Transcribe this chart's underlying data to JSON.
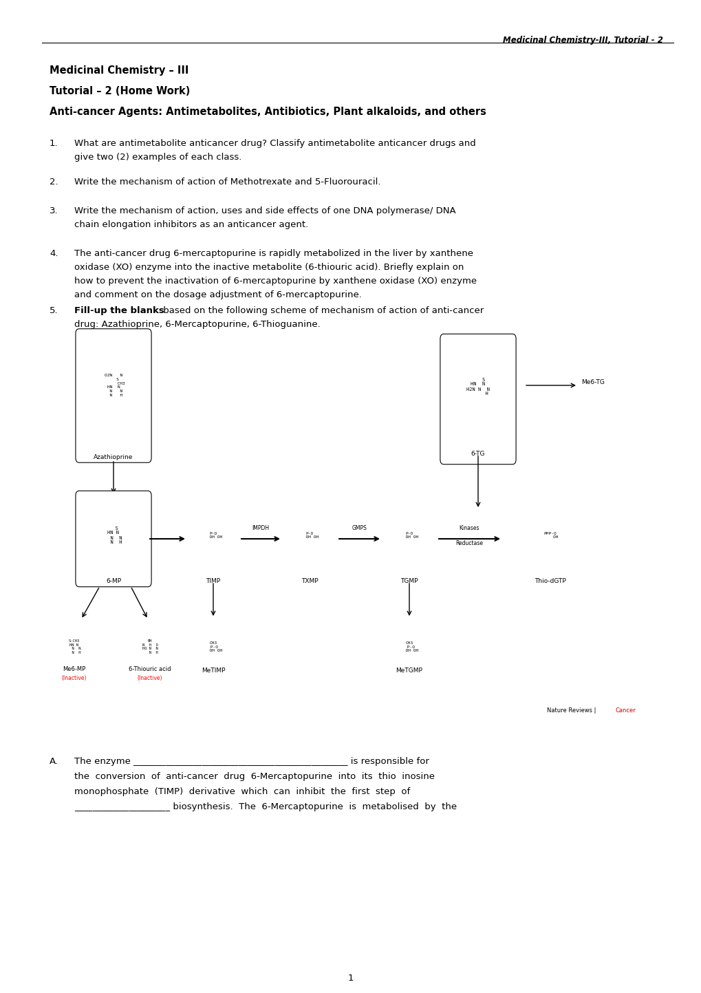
{
  "header": "Medicinal Chemistry-III, Tutorial - 2",
  "title1": "Medicinal Chemistry – III",
  "title2": "Tutorial – 2 (Home Work)",
  "title3": "Anti-cancer Agents: Antimetabolites, Antibiotics, Plant alkaloids, and others",
  "q1_line1": "What are antimetabolite anticancer drug? Classify antimetabolite anticancer drugs and",
  "q1_line2": "give two (2) examples of each class.",
  "q2": "Write the mechanism of action of Methotrexate and 5-Fluorouracil.",
  "q3_line1": "Write the mechanism of action, uses and side effects of one DNA polymerase/ DNA",
  "q3_line2": "chain elongation inhibitors as an anticancer agent.",
  "q4_lines": [
    "The anti-cancer drug 6-mercaptopurine is rapidly metabolized in the liver by xanthene",
    "oxidase (XO) enzyme into the inactive metabolite (6-thiouric acid). Briefly explain on",
    "how to prevent the inactivation of 6-mercaptopurine by xanthene oxidase (XO) enzyme",
    "and comment on the dosage adjustment of 6-mercaptopurine."
  ],
  "q5_bold": "Fill-up the blanks",
  "q5_rest": " based on the following scheme of mechanism of action of anti-cancer",
  "q5_line2": "drug: Azathioprine, 6-Mercaptopurine, 6-Thioguanine.",
  "qa_lines": [
    "The enzyme _______________________________________________ is responsible for",
    "the  conversion  of  anti-cancer  drug  6-Mercaptopurine  into  its  thio  inosine",
    "monophosphate  (TIMP)  derivative  which  can  inhibit  the  first  step  of",
    "_____________________ biosynthesis.  The  6-Mercaptopurine  is  metabolised  by  the"
  ],
  "page_num": "1",
  "bg_color": "#ffffff",
  "text_color": "#000000",
  "nature_reviews": "Nature Reviews | ",
  "cancer_text": "Cancer",
  "cancer_color": "#cc0000"
}
